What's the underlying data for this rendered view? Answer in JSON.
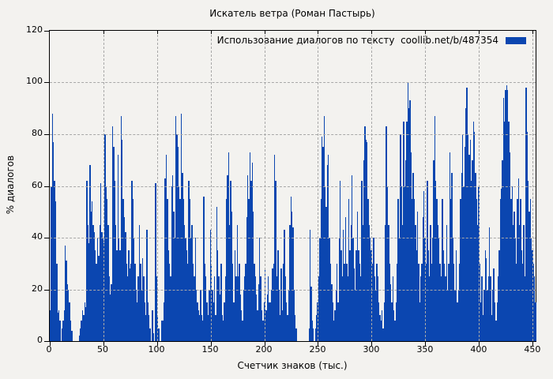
{
  "header": {
    "title": "Искатель ветра (Роман Пастырь)"
  },
  "legend": {
    "label": "Использование диалогов по тексту  coollib.net/b/487354",
    "swatch_color": "#0b46b0"
  },
  "axes": {
    "x_label": "Счетчик знаков (тыс.)",
    "y_label": "% диалогов"
  },
  "colors": {
    "bar": "#0b46b0",
    "background": "#f3f2ef",
    "grid": "#a8a8a8",
    "border": "#000000"
  },
  "chart_data": {
    "type": "bar",
    "title": "Искатель ветра (Роман Пастырь)",
    "xlabel": "Счетчик знаков (тыс.)",
    "ylabel": "% диалогов",
    "legend_entry": "Использование диалогов по тексту  coollib.net/b/487354",
    "xlim": [
      0,
      453
    ],
    "ylim": [
      0,
      120
    ],
    "xticks": [
      0,
      50,
      100,
      150,
      200,
      250,
      300,
      350,
      400,
      450
    ],
    "yticks": [
      0,
      20,
      40,
      60,
      80,
      100,
      120
    ],
    "grid": true,
    "legend_position": "top-right",
    "x_start": 0,
    "x_step": 1,
    "values": [
      12,
      60,
      88,
      77,
      62,
      54,
      30,
      11,
      12,
      8,
      0,
      5,
      8,
      12,
      37,
      31,
      22,
      20,
      15,
      8,
      4,
      0,
      0,
      0,
      0,
      0,
      0,
      2,
      5,
      8,
      12,
      10,
      15,
      13,
      62,
      45,
      38,
      68,
      50,
      54,
      45,
      42,
      35,
      30,
      40,
      33,
      45,
      61,
      42,
      40,
      38,
      80,
      60,
      55,
      45,
      25,
      18,
      22,
      83,
      75,
      62,
      45,
      35,
      72,
      40,
      35,
      87,
      78,
      55,
      48,
      42,
      30,
      25,
      35,
      28,
      30,
      62,
      55,
      40,
      30,
      20,
      15,
      25,
      45,
      30,
      20,
      32,
      25,
      15,
      10,
      43,
      15,
      10,
      5,
      0,
      12,
      3,
      0,
      61,
      25,
      10,
      5,
      0,
      0,
      8,
      8,
      15,
      63,
      72,
      55,
      35,
      30,
      25,
      60,
      64,
      50,
      40,
      87,
      80,
      75,
      60,
      55,
      88,
      65,
      55,
      45,
      40,
      35,
      30,
      62,
      55,
      40,
      45,
      30,
      25,
      40,
      20,
      15,
      12,
      10,
      20,
      10,
      8,
      56,
      30,
      25,
      15,
      10,
      20,
      43,
      30,
      20,
      15,
      25,
      10,
      52,
      35,
      25,
      18,
      30,
      10,
      8,
      15,
      25,
      55,
      64,
      73,
      45,
      62,
      50,
      30,
      15,
      35,
      25,
      45,
      25,
      30,
      18,
      12,
      8,
      20,
      25,
      30,
      48,
      64,
      55,
      73,
      62,
      69,
      50,
      30,
      25,
      18,
      12,
      22,
      40,
      25,
      12,
      8,
      15,
      28,
      12,
      18,
      25,
      15,
      15,
      20,
      28,
      30,
      72,
      62,
      25,
      35,
      20,
      10,
      28,
      12,
      30,
      43,
      25,
      15,
      10,
      20,
      45,
      56,
      50,
      44,
      20,
      10,
      5,
      0,
      0,
      0,
      0,
      0,
      0,
      0,
      0,
      0,
      0,
      0,
      5,
      43,
      21,
      8,
      5,
      0,
      5,
      10,
      15,
      25,
      40,
      55,
      79,
      75,
      87,
      60,
      52,
      68,
      72,
      40,
      30,
      22,
      15,
      8,
      12,
      20,
      30,
      15,
      40,
      62,
      35,
      25,
      43,
      30,
      48,
      30,
      25,
      55,
      35,
      45,
      64,
      40,
      28,
      20,
      35,
      50,
      35,
      30,
      25,
      62,
      45,
      70,
      83,
      78,
      77,
      55,
      45,
      40,
      35,
      30,
      40,
      25,
      20,
      30,
      25,
      15,
      10,
      8,
      12,
      5,
      15,
      45,
      83,
      60,
      45,
      30,
      22,
      15,
      25,
      12,
      8,
      15,
      30,
      55,
      40,
      80,
      60,
      45,
      85,
      60,
      70,
      85,
      100,
      90,
      93,
      73,
      55,
      65,
      55,
      45,
      35,
      50,
      30,
      15,
      25,
      30,
      48,
      58,
      40,
      30,
      62,
      35,
      25,
      45,
      30,
      40,
      70,
      87,
      62,
      55,
      45,
      40,
      30,
      25,
      55,
      35,
      30,
      25,
      45,
      20,
      30,
      73,
      55,
      65,
      40,
      30,
      20,
      35,
      15,
      20,
      30,
      55,
      65,
      80,
      60,
      75,
      90,
      98,
      80,
      72,
      78,
      62,
      70,
      85,
      81,
      65,
      55,
      45,
      60,
      30,
      15,
      25,
      10,
      20,
      35,
      32,
      20,
      25,
      44,
      25,
      10,
      20,
      28,
      15,
      8,
      15,
      25,
      35,
      55,
      59,
      70,
      94,
      85,
      97,
      99,
      97,
      85,
      73,
      55,
      60,
      45,
      50,
      40,
      30,
      55,
      63,
      45,
      55,
      35,
      30,
      45,
      25,
      98,
      81,
      62,
      50,
      55,
      40,
      35,
      30,
      25,
      15
    ]
  }
}
